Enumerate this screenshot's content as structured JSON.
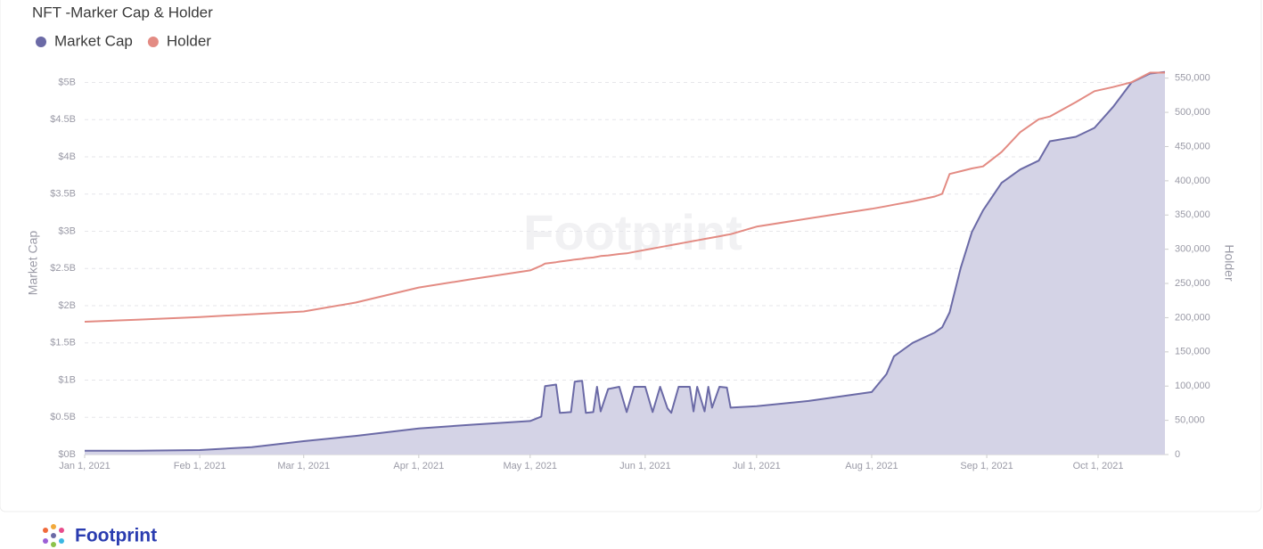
{
  "chart_data": {
    "type": "line",
    "title": "NFT -Marker Cap & Holder",
    "watermark": "Footprint",
    "x": [
      "2021-01-01",
      "2021-01-15",
      "2021-02-01",
      "2021-02-15",
      "2021-03-01",
      "2021-03-15",
      "2021-04-01",
      "2021-04-15",
      "2021-05-01",
      "2021-05-04",
      "2021-05-05",
      "2021-05-08",
      "2021-05-09",
      "2021-05-12",
      "2021-05-13",
      "2021-05-15",
      "2021-05-16",
      "2021-05-18",
      "2021-05-19",
      "2021-05-20",
      "2021-05-22",
      "2021-05-25",
      "2021-05-27",
      "2021-05-29",
      "2021-06-01",
      "2021-06-03",
      "2021-06-05",
      "2021-06-07",
      "2021-06-08",
      "2021-06-10",
      "2021-06-13",
      "2021-06-14",
      "2021-06-15",
      "2021-06-17",
      "2021-06-18",
      "2021-06-19",
      "2021-06-21",
      "2021-06-23",
      "2021-06-24",
      "2021-07-01",
      "2021-07-15",
      "2021-08-01",
      "2021-08-05",
      "2021-08-07",
      "2021-08-12",
      "2021-08-18",
      "2021-08-20",
      "2021-08-22",
      "2021-08-25",
      "2021-08-28",
      "2021-08-31",
      "2021-09-05",
      "2021-09-10",
      "2021-09-15",
      "2021-09-18",
      "2021-09-25",
      "2021-09-30",
      "2021-10-05",
      "2021-10-10",
      "2021-10-15",
      "2021-10-19"
    ],
    "series": [
      {
        "name": "Market Cap",
        "color": "#6b6aa6",
        "fill": "#d4d3e6",
        "axis": "y",
        "values": [
          50000000,
          50000000,
          60000000,
          100000000,
          180000000,
          250000000,
          350000000,
          400000000,
          450000000,
          510000000,
          920000000,
          940000000,
          560000000,
          570000000,
          980000000,
          990000000,
          560000000,
          570000000,
          910000000,
          580000000,
          880000000,
          910000000,
          570000000,
          910000000,
          910000000,
          570000000,
          910000000,
          620000000,
          560000000,
          910000000,
          910000000,
          580000000,
          910000000,
          580000000,
          910000000,
          630000000,
          910000000,
          900000000,
          630000000,
          650000000,
          720000000,
          840000000,
          1080000000,
          1320000000,
          1500000000,
          1640000000,
          1710000000,
          1910000000,
          2510000000,
          2990000000,
          3280000000,
          3650000000,
          3830000000,
          3950000000,
          4210000000,
          4270000000,
          4390000000,
          4670000000,
          5000000000,
          5120000000,
          5140000000
        ]
      },
      {
        "name": "Holder",
        "color": "#e38b83",
        "axis": "y2",
        "values": [
          194000,
          197000,
          201000,
          205000,
          209000,
          222000,
          244000,
          256000,
          269000,
          276000,
          279000,
          281000,
          282000,
          284000,
          285000,
          286000,
          287000,
          288000,
          289000,
          290000,
          291000,
          293000,
          294000,
          296000,
          299000,
          301000,
          303000,
          305000,
          306000,
          308000,
          311000,
          312000,
          313000,
          315000,
          316000,
          317000,
          319000,
          321000,
          322000,
          333000,
          345000,
          359000,
          363000,
          365000,
          370000,
          377000,
          381000,
          410000,
          414000,
          418000,
          421000,
          442000,
          471000,
          490000,
          494000,
          515000,
          531000,
          537000,
          544000,
          558000,
          558000
        ]
      }
    ],
    "xlim": [
      "2021-01-01",
      "2021-10-19"
    ],
    "xticks": [
      {
        "value": "2021-01-01",
        "label": "Jan 1, 2021"
      },
      {
        "value": "2021-02-01",
        "label": "Feb 1, 2021"
      },
      {
        "value": "2021-03-01",
        "label": "Mar 1, 2021"
      },
      {
        "value": "2021-04-01",
        "label": "Apr 1, 2021"
      },
      {
        "value": "2021-05-01",
        "label": "May 1, 2021"
      },
      {
        "value": "2021-06-01",
        "label": "Jun 1, 2021"
      },
      {
        "value": "2021-07-01",
        "label": "Jul 1, 2021"
      },
      {
        "value": "2021-08-01",
        "label": "Aug 1, 2021"
      },
      {
        "value": "2021-09-01",
        "label": "Sep 1, 2021"
      },
      {
        "value": "2021-10-01",
        "label": "Oct 1, 2021"
      }
    ],
    "ylabel": "Market Cap",
    "ylim": [
      0,
      5150000000
    ],
    "yticks": [
      {
        "value": 0,
        "label": "$0B"
      },
      {
        "value": 500000000,
        "label": "$0.5B"
      },
      {
        "value": 1000000000,
        "label": "$1B"
      },
      {
        "value": 1500000000,
        "label": "$1.5B"
      },
      {
        "value": 2000000000,
        "label": "$2B"
      },
      {
        "value": 2500000000,
        "label": "$2.5B"
      },
      {
        "value": 3000000000,
        "label": "$3B"
      },
      {
        "value": 3500000000,
        "label": "$3.5B"
      },
      {
        "value": 4000000000,
        "label": "$4B"
      },
      {
        "value": 4500000000,
        "label": "$4.5B"
      },
      {
        "value": 5000000000,
        "label": "$5B"
      }
    ],
    "y2label": "Holder",
    "y2lim": [
      0,
      560000
    ],
    "y2ticks": [
      0,
      {
        "value": 50000,
        "label": "50,000"
      },
      {
        "value": 100000,
        "label": "100,000"
      },
      {
        "value": 150000,
        "label": "150,000"
      },
      {
        "value": 200000,
        "label": "200,000"
      },
      {
        "value": 250000,
        "label": "250,000"
      },
      {
        "value": 300000,
        "label": "300,000"
      },
      {
        "value": 350000,
        "label": "350,000"
      },
      {
        "value": 400000,
        "label": "400,000"
      },
      {
        "value": 450000,
        "label": "450,000"
      },
      {
        "value": 500000,
        "label": "500,000"
      },
      {
        "value": 550000,
        "label": "550,000"
      }
    ],
    "grid": true,
    "legend": "top-left"
  },
  "footer": {
    "brand": "Footprint"
  }
}
